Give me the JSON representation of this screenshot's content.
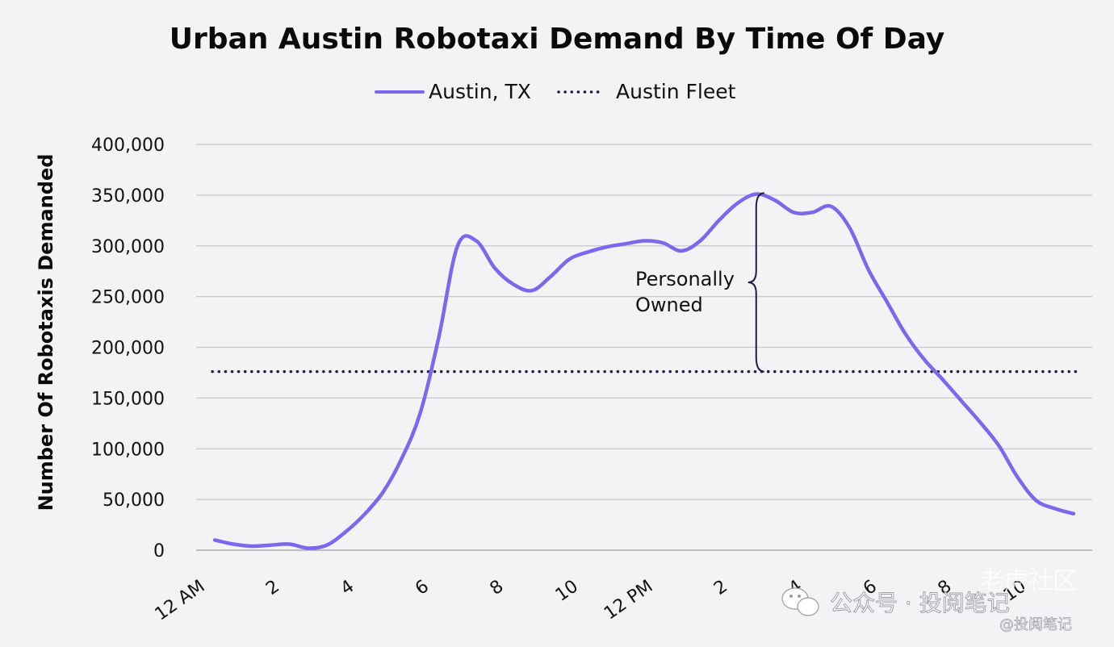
{
  "chart_data": {
    "type": "line",
    "title": "Urban Austin Robotaxi Demand By Time Of Day",
    "xlabel": "",
    "ylabel": "Number Of Robotaxis Demanded",
    "x_categories": [
      "12 AM",
      "2",
      "4",
      "6",
      "8",
      "10",
      "12 PM",
      "2",
      "4",
      "6",
      "8",
      "10"
    ],
    "x_hours": [
      0,
      2,
      4,
      6,
      8,
      10,
      12,
      14,
      16,
      18,
      20,
      22
    ],
    "xlim": [
      0,
      24
    ],
    "ylim": [
      0,
      400000
    ],
    "yticks": [
      0,
      50000,
      100000,
      150000,
      200000,
      250000,
      300000,
      350000,
      400000
    ],
    "ytick_labels": [
      "0",
      "50,000",
      "100,000",
      "150,000",
      "200,000",
      "250,000",
      "300,000",
      "350,000",
      "400,000"
    ],
    "grid": true,
    "legend": "top-center",
    "series": [
      {
        "name": "Austin, TX",
        "style": "solid",
        "color": "#7b68ee",
        "x": [
          0.5,
          1.0,
          1.5,
          2.0,
          2.5,
          3.0,
          3.5,
          4.0,
          4.5,
          5.0,
          5.5,
          6.0,
          6.5,
          7.0,
          7.5,
          8.0,
          8.5,
          9.0,
          9.5,
          10.0,
          10.5,
          11.0,
          11.5,
          12.0,
          12.5,
          13.0,
          13.5,
          14.0,
          14.5,
          15.0,
          15.5,
          16.0,
          16.5,
          17.0,
          17.5,
          18.0,
          18.5,
          19.0,
          19.5,
          20.0,
          20.5,
          21.0,
          21.5,
          22.0,
          22.5,
          23.0,
          23.5
        ],
        "y": [
          10000,
          6000,
          4000,
          5000,
          6000,
          2000,
          5000,
          18000,
          35000,
          57000,
          90000,
          135000,
          210000,
          300000,
          305000,
          278000,
          262000,
          256000,
          270000,
          287000,
          294000,
          299000,
          302000,
          305000,
          303000,
          295000,
          305000,
          325000,
          342000,
          351000,
          345000,
          333000,
          333000,
          339000,
          318000,
          277000,
          245000,
          213000,
          188000,
          168000,
          147000,
          126000,
          103000,
          72000,
          49000,
          41000,
          36000
        ]
      },
      {
        "name": "Austin Fleet",
        "style": "dotted",
        "color": "#1e1b4b",
        "x": [
          0.5,
          23.5
        ],
        "y": [
          176000,
          176000
        ]
      }
    ],
    "annotations": [
      {
        "text_lines": [
          "Personally",
          "Owned"
        ],
        "x": 15.0,
        "y_from": 176000,
        "y_to": 352000
      }
    ]
  },
  "watermark": {
    "line1": "老虎社区",
    "line2": "公众号 · 投阅笔记",
    "line3": "@投阅笔记"
  },
  "colors": {
    "background": "#f2f3f5",
    "gridline": "#c8c8cc",
    "austin_line": "#7b68ee",
    "fleet_line": "#1e1b4b"
  }
}
